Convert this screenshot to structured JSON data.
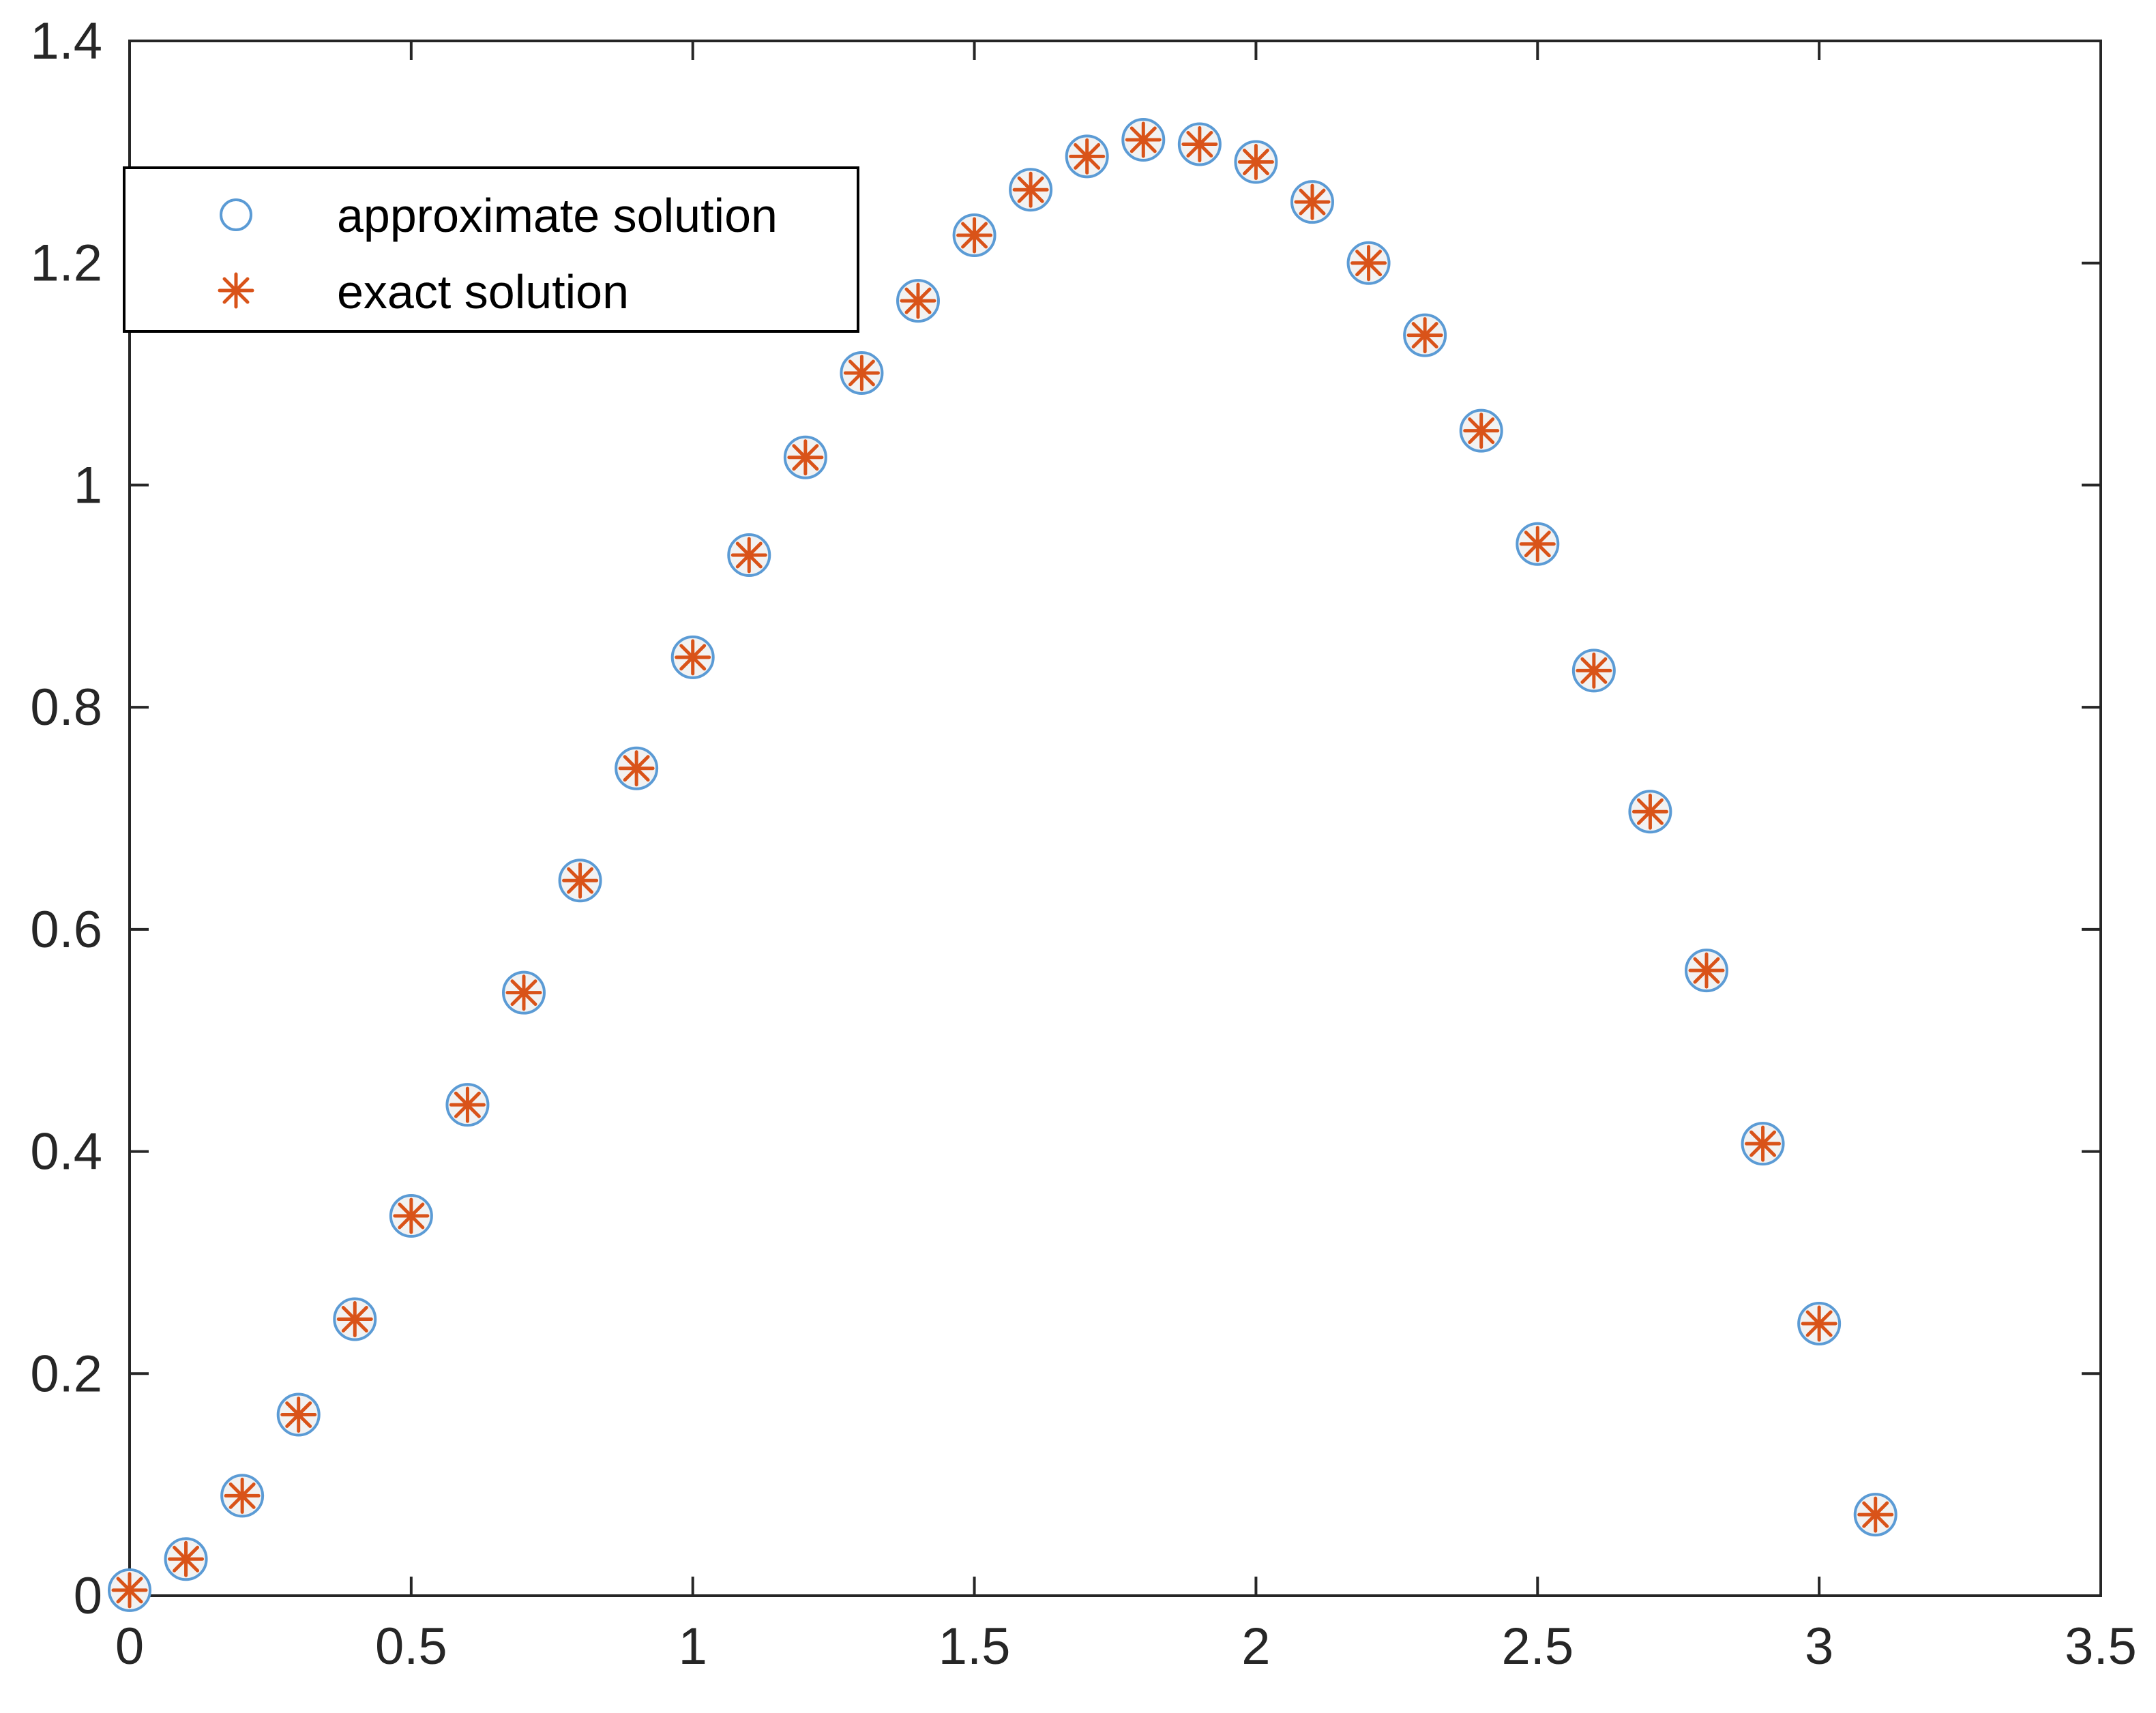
{
  "colors": {
    "approximate": "#5b9bd5",
    "exact": "#d95319",
    "axis": "#262626",
    "background": "#ffffff"
  },
  "chart_data": {
    "type": "scatter",
    "xlim": [
      0,
      3.5
    ],
    "ylim": [
      0,
      1.4
    ],
    "x_ticks": [
      "0",
      "0.5",
      "1",
      "1.5",
      "2",
      "2.5",
      "3",
      "3.5"
    ],
    "y_ticks": [
      "0",
      "0.2",
      "0.4",
      "0.6",
      "0.8",
      "1",
      "1.2",
      "1.4"
    ],
    "grid": false,
    "legend_position": "top-left",
    "x": [
      0,
      0.1,
      0.2,
      0.3,
      0.4,
      0.5,
      0.6,
      0.7,
      0.8,
      0.9,
      1.0,
      1.1,
      1.2,
      1.3,
      1.4,
      1.5,
      1.6,
      1.7,
      1.8,
      1.9,
      2.0,
      2.1,
      2.2,
      2.3,
      2.4,
      2.5,
      2.6,
      2.7,
      2.8,
      2.9,
      3.0,
      3.1
    ],
    "series": [
      {
        "name": "approximate solution",
        "marker": "circle",
        "values": [
          0.005,
          0.033,
          0.09,
          0.163,
          0.249,
          0.342,
          0.442,
          0.543,
          0.644,
          0.745,
          0.845,
          0.937,
          1.025,
          1.101,
          1.166,
          1.225,
          1.266,
          1.296,
          1.311,
          1.307,
          1.291,
          1.255,
          1.2,
          1.135,
          1.049,
          0.947,
          0.833,
          0.706,
          0.563,
          0.407,
          0.245,
          0.073
        ]
      },
      {
        "name": "exact solution",
        "marker": "asterisk",
        "values": [
          0.005,
          0.033,
          0.09,
          0.163,
          0.249,
          0.342,
          0.442,
          0.543,
          0.644,
          0.745,
          0.845,
          0.937,
          1.025,
          1.101,
          1.166,
          1.225,
          1.266,
          1.296,
          1.311,
          1.307,
          1.291,
          1.255,
          1.2,
          1.135,
          1.049,
          0.947,
          0.833,
          0.706,
          0.563,
          0.407,
          0.245,
          0.073
        ]
      }
    ]
  }
}
